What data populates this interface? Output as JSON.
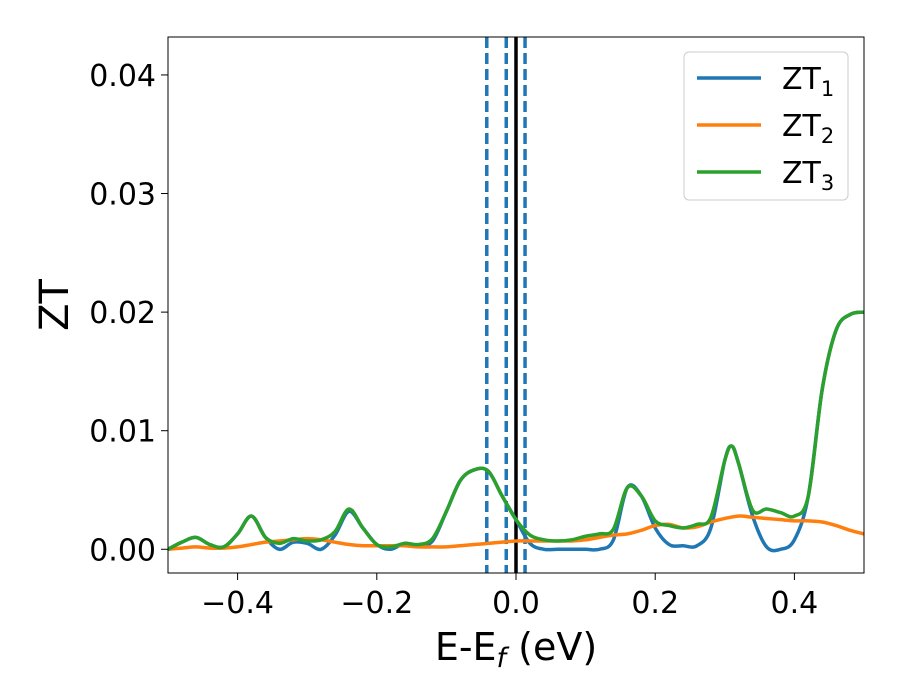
{
  "chart_data": {
    "type": "line",
    "title": "",
    "xlabel_main": "E-E",
    "xlabel_sub": "f",
    "xlabel_unit": " (eV)",
    "ylabel": "ZT",
    "xlim": [
      -0.5,
      0.5
    ],
    "ylim": [
      -0.002,
      0.0432
    ],
    "x_ticks": [
      -0.4,
      -0.2,
      0.0,
      0.2,
      0.4
    ],
    "x_tick_labels": [
      "−0.4",
      "−0.2",
      "0.0",
      "0.2",
      "0.4"
    ],
    "y_ticks": [
      0.0,
      0.01,
      0.02,
      0.03,
      0.04
    ],
    "y_tick_labels": [
      "0.00",
      "0.01",
      "0.02",
      "0.03",
      "0.04"
    ],
    "grid": false,
    "legend_position": "top-right",
    "vertical_lines": [
      {
        "x": -0.042,
        "style": "dashed",
        "color": "#1f77b4"
      },
      {
        "x": -0.014,
        "style": "dashed",
        "color": "#1f77b4"
      },
      {
        "x": 0.013,
        "style": "dashed",
        "color": "#1f77b4"
      },
      {
        "x": 0.0,
        "style": "solid",
        "color": "#000000"
      }
    ],
    "series": [
      {
        "name": "ZT",
        "subscript": "1",
        "color": "#1f77b4",
        "x": [
          -0.5,
          -0.48,
          -0.46,
          -0.44,
          -0.42,
          -0.4,
          -0.38,
          -0.36,
          -0.34,
          -0.32,
          -0.3,
          -0.28,
          -0.26,
          -0.24,
          -0.22,
          -0.2,
          -0.18,
          -0.16,
          -0.14,
          -0.12,
          -0.1,
          -0.08,
          -0.06,
          -0.04,
          -0.02,
          0.0,
          0.02,
          0.04,
          0.06,
          0.08,
          0.1,
          0.12,
          0.14,
          0.16,
          0.18,
          0.2,
          0.22,
          0.24,
          0.26,
          0.28,
          0.3,
          0.31,
          0.32,
          0.34,
          0.36,
          0.38,
          0.4,
          0.42,
          0.44,
          0.46,
          0.48,
          0.5
        ],
        "y": [
          0.0,
          0.0006,
          0.001,
          0.0004,
          0.0002,
          0.0013,
          0.0028,
          0.001,
          0.0,
          0.0006,
          0.0005,
          0.0,
          0.0012,
          0.0032,
          0.0018,
          0.0004,
          0.0,
          0.0005,
          0.0003,
          0.0007,
          0.0032,
          0.0058,
          0.0067,
          0.0066,
          0.0045,
          0.0025,
          0.0005,
          0.0,
          0.0,
          0.0,
          0.0,
          0.0,
          0.0008,
          0.0052,
          0.0045,
          0.0018,
          0.0004,
          0.0003,
          0.0003,
          0.0018,
          0.0075,
          0.0087,
          0.0072,
          0.0028,
          0.0002,
          0.0,
          0.0008,
          0.0045,
          0.0135,
          0.0185,
          0.0198,
          0.02
        ]
      },
      {
        "name": "ZT",
        "subscript": "2",
        "color": "#ff7f0e",
        "x": [
          -0.5,
          -0.48,
          -0.46,
          -0.44,
          -0.42,
          -0.4,
          -0.38,
          -0.36,
          -0.34,
          -0.32,
          -0.3,
          -0.28,
          -0.26,
          -0.24,
          -0.22,
          -0.2,
          -0.18,
          -0.16,
          -0.14,
          -0.12,
          -0.1,
          -0.08,
          -0.06,
          -0.04,
          -0.02,
          0.0,
          0.02,
          0.04,
          0.06,
          0.08,
          0.1,
          0.12,
          0.14,
          0.16,
          0.18,
          0.2,
          0.22,
          0.24,
          0.26,
          0.28,
          0.3,
          0.32,
          0.34,
          0.36,
          0.38,
          0.4,
          0.42,
          0.44,
          0.46,
          0.48,
          0.5
        ],
        "y": [
          0.0,
          0.0001,
          0.0002,
          0.0001,
          0.0001,
          0.0002,
          0.0004,
          0.0006,
          0.0007,
          0.0008,
          0.0009,
          0.0008,
          0.0006,
          0.0004,
          0.0003,
          0.0003,
          0.0003,
          0.0003,
          0.0002,
          0.0002,
          0.0002,
          0.0003,
          0.0004,
          0.0005,
          0.0006,
          0.0007,
          0.0007,
          0.0007,
          0.0007,
          0.0007,
          0.0008,
          0.001,
          0.0012,
          0.0013,
          0.0016,
          0.002,
          0.0021,
          0.0018,
          0.0019,
          0.0023,
          0.0026,
          0.0028,
          0.0027,
          0.0026,
          0.0025,
          0.0024,
          0.0024,
          0.0023,
          0.002,
          0.0016,
          0.0013
        ]
      },
      {
        "name": "ZT",
        "subscript": "3",
        "color": "#2ca02c",
        "x": [
          -0.5,
          -0.48,
          -0.46,
          -0.44,
          -0.42,
          -0.4,
          -0.38,
          -0.36,
          -0.34,
          -0.32,
          -0.3,
          -0.28,
          -0.26,
          -0.24,
          -0.22,
          -0.2,
          -0.18,
          -0.16,
          -0.14,
          -0.12,
          -0.1,
          -0.08,
          -0.06,
          -0.04,
          -0.02,
          0.0,
          0.02,
          0.04,
          0.06,
          0.08,
          0.1,
          0.12,
          0.14,
          0.16,
          0.18,
          0.2,
          0.22,
          0.24,
          0.26,
          0.28,
          0.3,
          0.31,
          0.32,
          0.34,
          0.36,
          0.38,
          0.4,
          0.42,
          0.44,
          0.46,
          0.48,
          0.5
        ],
        "y": [
          0.0,
          0.0006,
          0.001,
          0.0004,
          0.0002,
          0.0013,
          0.0028,
          0.001,
          0.0005,
          0.0009,
          0.0007,
          0.0008,
          0.0015,
          0.0034,
          0.0018,
          0.0004,
          0.0002,
          0.0005,
          0.0004,
          0.0009,
          0.0032,
          0.0058,
          0.0067,
          0.0066,
          0.0045,
          0.0025,
          0.0012,
          0.0008,
          0.0007,
          0.0008,
          0.0011,
          0.0013,
          0.0017,
          0.0052,
          0.0045,
          0.0024,
          0.002,
          0.0018,
          0.0021,
          0.0027,
          0.0075,
          0.0087,
          0.0072,
          0.0033,
          0.0034,
          0.0031,
          0.0028,
          0.0045,
          0.0135,
          0.0185,
          0.0198,
          0.02
        ]
      }
    ]
  }
}
